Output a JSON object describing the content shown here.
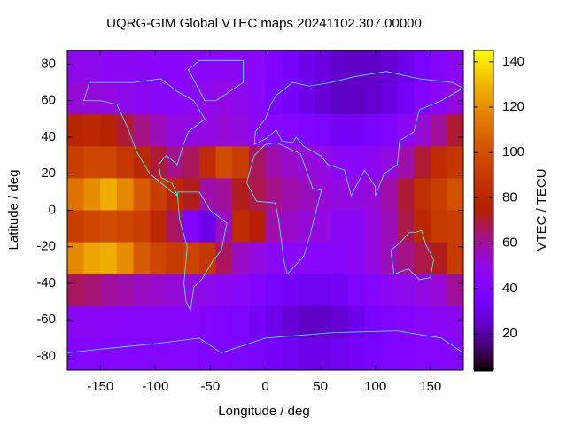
{
  "chart_data": {
    "type": "heatmap",
    "title": "UQRG-GIM Global VTEC maps 20241102.307.00000",
    "xlabel": "Longitude / deg",
    "ylabel": "Latitude / deg",
    "colorbar_label": "VTEC / TECU",
    "colormap": "gnuplot",
    "xlim": [
      -180,
      180
    ],
    "ylim": [
      -87.5,
      87.5
    ],
    "zlim": [
      4,
      145
    ],
    "xticks": [
      -150,
      -100,
      -50,
      0,
      50,
      100,
      150
    ],
    "yticks": [
      -80,
      -60,
      -40,
      -20,
      0,
      20,
      40,
      60,
      80
    ],
    "zticks": [
      20,
      40,
      60,
      80,
      100,
      120,
      140
    ],
    "x": [
      -172.5,
      -157.5,
      -142.5,
      -127.5,
      -112.5,
      -97.5,
      -82.5,
      -67.5,
      -52.5,
      -37.5,
      -22.5,
      -7.5,
      7.5,
      22.5,
      37.5,
      52.5,
      67.5,
      82.5,
      97.5,
      112.5,
      127.5,
      142.5,
      157.5,
      172.5
    ],
    "y": [
      78.75,
      61.25,
      43.75,
      26.25,
      8.75,
      -8.75,
      -26.25,
      -43.75,
      -61.25,
      -78.75
    ],
    "z": [
      [
        48,
        48,
        46,
        46,
        45,
        44,
        44,
        45,
        46,
        46,
        45,
        44,
        40,
        35,
        30,
        28,
        25,
        24,
        24,
        26,
        30,
        36,
        42,
        46
      ],
      [
        52,
        52,
        50,
        48,
        46,
        44,
        44,
        46,
        48,
        50,
        48,
        44,
        38,
        34,
        30,
        26,
        24,
        24,
        25,
        28,
        34,
        40,
        46,
        50
      ],
      [
        78,
        80,
        76,
        70,
        62,
        56,
        50,
        50,
        50,
        52,
        50,
        46,
        44,
        42,
        40,
        38,
        34,
        34,
        36,
        40,
        46,
        52,
        60,
        70
      ],
      [
        92,
        96,
        95,
        88,
        80,
        70,
        62,
        66,
        82,
        98,
        92,
        66,
        58,
        54,
        52,
        50,
        46,
        44,
        46,
        50,
        58,
        70,
        82,
        88
      ],
      [
        112,
        120,
        128,
        118,
        104,
        92,
        80,
        72,
        58,
        60,
        72,
        68,
        62,
        58,
        56,
        52,
        50,
        50,
        52,
        58,
        70,
        84,
        92,
        100
      ],
      [
        92,
        96,
        98,
        96,
        92,
        80,
        66,
        40,
        30,
        55,
        82,
        74,
        58,
        54,
        52,
        50,
        46,
        46,
        50,
        56,
        68,
        80,
        90,
        92
      ],
      [
        118,
        126,
        128,
        120,
        104,
        96,
        90,
        94,
        88,
        66,
        55,
        50,
        46,
        44,
        44,
        44,
        44,
        46,
        50,
        56,
        62,
        68,
        72,
        90
      ],
      [
        66,
        64,
        60,
        58,
        55,
        54,
        52,
        50,
        48,
        46,
        44,
        40,
        36,
        34,
        32,
        32,
        34,
        38,
        42,
        46,
        48,
        50,
        52,
        60
      ],
      [
        46,
        46,
        45,
        44,
        44,
        44,
        44,
        44,
        42,
        40,
        38,
        34,
        30,
        26,
        24,
        24,
        26,
        30,
        36,
        40,
        42,
        44,
        46,
        46
      ],
      [
        42,
        42,
        42,
        42,
        42,
        42,
        42,
        42,
        40,
        40,
        38,
        36,
        34,
        32,
        30,
        30,
        32,
        34,
        36,
        38,
        40,
        42,
        42,
        42
      ]
    ]
  }
}
